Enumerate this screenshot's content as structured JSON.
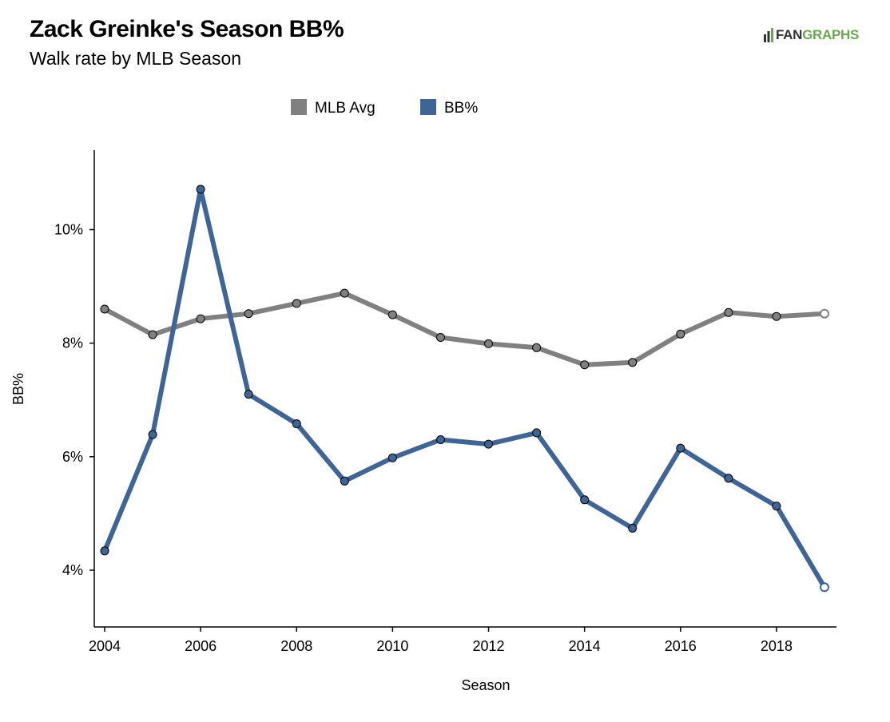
{
  "header": {
    "title": "Zack Greinke's Season BB%",
    "subtitle": "Walk rate by MLB Season"
  },
  "logo": {
    "text_dark": "FAN",
    "text_green": "GRAPHS"
  },
  "colors": {
    "mlb_avg": "#808080",
    "bb_pct": "#3f6596",
    "axis": "#000000",
    "brand_green": "#6aa84f"
  },
  "chart_data": {
    "type": "line",
    "title": "Zack Greinke's Season BB%",
    "subtitle": "Walk rate by MLB Season",
    "xlabel": "Season",
    "ylabel": "BB%",
    "xlim": [
      2004,
      2019
    ],
    "ylim": [
      3.0,
      11.4
    ],
    "x_ticks": [
      2004,
      2006,
      2008,
      2010,
      2012,
      2014,
      2016,
      2018
    ],
    "y_ticks": [
      4,
      6,
      8,
      10
    ],
    "y_tick_labels": [
      "4%",
      "6%",
      "8%",
      "10%"
    ],
    "legend_position": "top-center",
    "grid": false,
    "x": [
      2004,
      2005,
      2006,
      2007,
      2008,
      2009,
      2010,
      2011,
      2012,
      2013,
      2014,
      2015,
      2016,
      2017,
      2018,
      2019
    ],
    "series": [
      {
        "name": "MLB Avg",
        "color": "#808080",
        "values": [
          8.6,
          8.15,
          8.43,
          8.52,
          8.7,
          8.88,
          8.5,
          8.1,
          7.99,
          7.92,
          7.62,
          7.66,
          8.16,
          8.54,
          8.47,
          8.52
        ],
        "last_point_hollow": true
      },
      {
        "name": "BB%",
        "color": "#3f6596",
        "values": [
          4.34,
          6.39,
          10.71,
          7.1,
          6.58,
          5.57,
          5.98,
          6.3,
          6.22,
          6.42,
          5.24,
          4.74,
          6.15,
          5.62,
          5.13,
          3.7
        ],
        "last_point_hollow": true
      }
    ]
  }
}
